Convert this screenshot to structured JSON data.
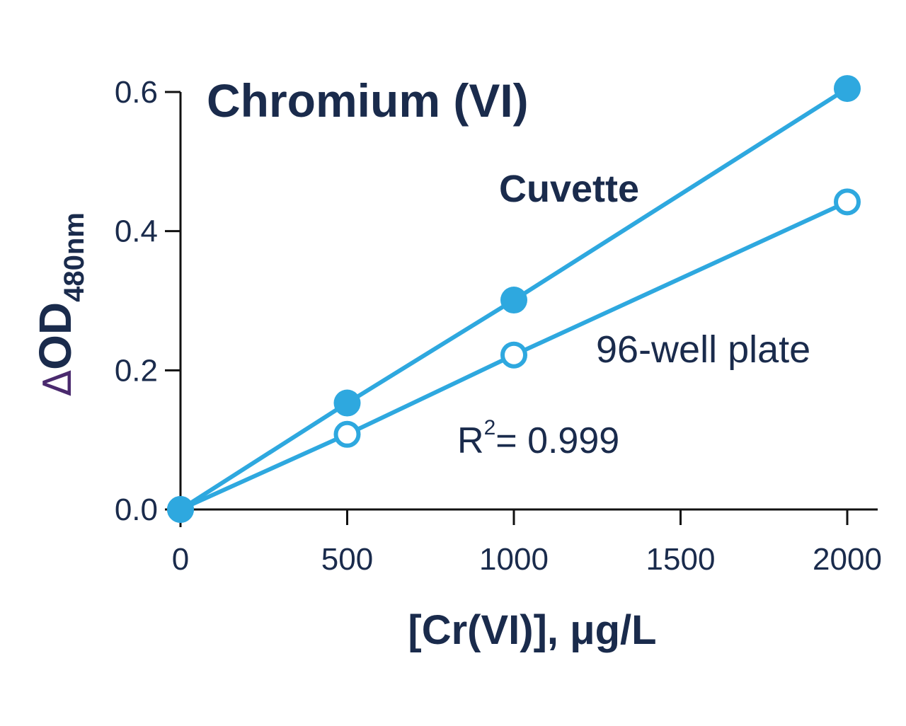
{
  "chart_data": {
    "type": "line",
    "title": "Chromium (VI)",
    "xlabel": "[Cr(VI)], μg/L",
    "ylabel": {
      "prefix": "Δ",
      "main": "OD",
      "subscript": "480nm"
    },
    "x_ticks": [
      "0",
      "500",
      "1000",
      "1500",
      "2000"
    ],
    "y_ticks": [
      "0.0",
      "0.2",
      "0.4",
      "0.6"
    ],
    "xlim": [
      0,
      2000
    ],
    "ylim": [
      0,
      0.6
    ],
    "grid": false,
    "series": [
      {
        "name": "Cuvette",
        "marker": "filled-circle",
        "color": "#2ea8df",
        "x": [
          0,
          500,
          1000,
          2000
        ],
        "y": [
          0.0,
          0.153,
          0.301,
          0.605
        ]
      },
      {
        "name": "96-well plate",
        "marker": "open-circle",
        "color": "#2ea8df",
        "x": [
          0,
          500,
          1000,
          2000
        ],
        "y": [
          0.0,
          0.108,
          0.222,
          0.442
        ]
      }
    ],
    "annotation": {
      "base": "R",
      "superscript": "2",
      "rest": "= 0.999"
    }
  },
  "colors": {
    "text": "#1a2b4c",
    "line": "#2ea8df",
    "delta": "#4a2a6e"
  }
}
